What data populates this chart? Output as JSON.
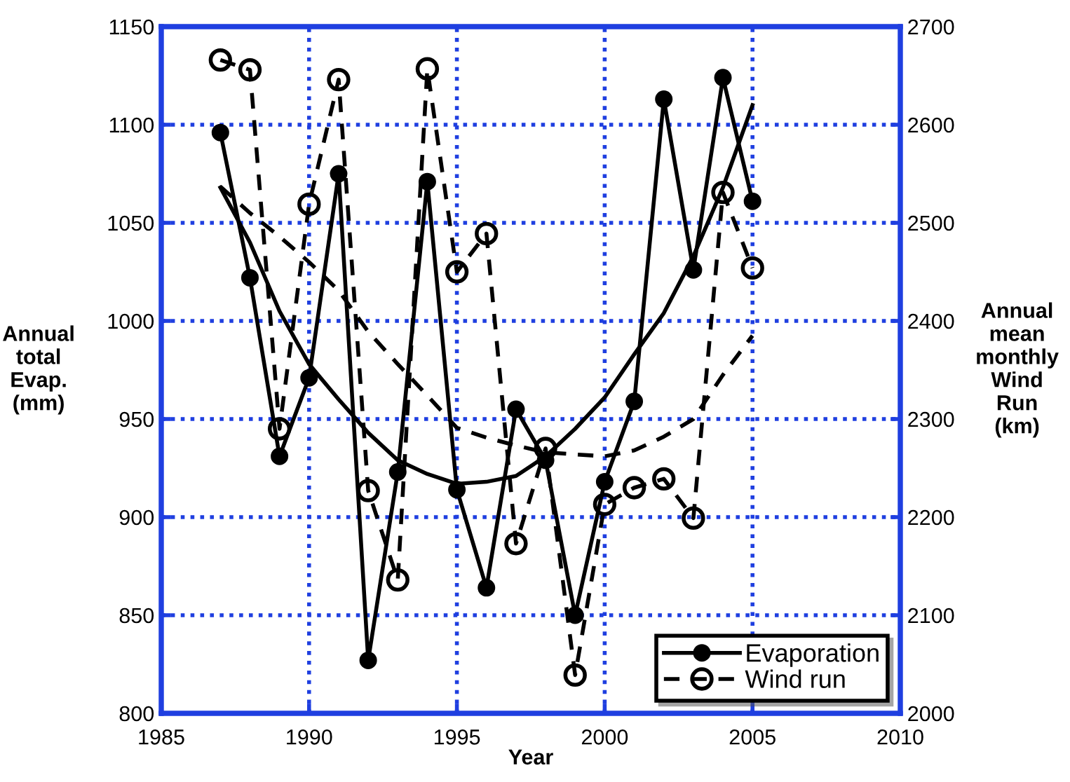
{
  "chart_data": {
    "type": "line",
    "xlabel": "Year",
    "ylabel": "Annual\ntotal\nEvap.\n(mm)",
    "y2label": "Annual\nmean\nmonthly\nWind\nRun\n(km)",
    "xlim": [
      1985,
      2010
    ],
    "xticks": [
      1985,
      1990,
      1995,
      2000,
      2005,
      2010
    ],
    "ylim": [
      800,
      1150
    ],
    "yticks": [
      800,
      850,
      900,
      950,
      1000,
      1050,
      1100,
      1150
    ],
    "y2lim": [
      2000,
      2700
    ],
    "y2ticks": [
      2000,
      2100,
      2200,
      2300,
      2400,
      2500,
      2600,
      2700
    ],
    "grid": true,
    "legend": "bottom right",
    "series": [
      {
        "name": "Evaporation",
        "color": "#000000",
        "marker": "circle",
        "line_style": "solid",
        "x": [
          1987,
          1988,
          1989,
          1990,
          1991,
          1992,
          1993,
          1994,
          1995,
          1996,
          1997,
          1998,
          1999,
          2000,
          2001,
          2002,
          2003,
          2004,
          2005
        ],
        "values": [
          1096,
          1022,
          931,
          971,
          1075,
          827,
          923,
          1071,
          914,
          864,
          955,
          929,
          850,
          918,
          959,
          1113,
          1026,
          1124,
          1061
        ]
      },
      {
        "name": "Wind run",
        "color": "#000000",
        "marker": "circle",
        "line_style": "dashed",
        "axis": "y2",
        "x": [
          1987,
          1988,
          1989,
          1990,
          1991,
          1992,
          1993,
          1994,
          1995,
          1996,
          1997,
          1998,
          1999,
          2000,
          2001,
          2002,
          2003,
          2004,
          2005
        ],
        "values": [
          2666,
          2656,
          2290,
          2519,
          2646,
          2227,
          2136,
          2657,
          2450,
          2489,
          2173,
          2270,
          2039,
          2213,
          2230,
          2239,
          2199,
          2531,
          2454
        ]
      },
      {
        "color": "#000000",
        "marker": "none",
        "line_style": "solid",
        "x": [
          1987,
          1988,
          1989,
          1990,
          1991,
          1992,
          1993,
          1994,
          1995,
          1996,
          1997,
          1998,
          1999,
          2000,
          2001,
          2002,
          2003,
          2004,
          2005
        ],
        "values": [
          1068,
          1040,
          1005,
          978,
          960,
          943,
          929,
          922,
          917,
          918,
          921,
          931,
          945,
          961,
          983,
          1004,
          1033,
          1068,
          1110
        ]
      },
      {
        "color": "#000000",
        "marker": "none",
        "line_style": "dashed",
        "axis": "y2",
        "x": [
          1987,
          1988,
          1989,
          1990,
          1991,
          1992,
          1993,
          1994,
          1995,
          1996,
          1997,
          1998,
          1999,
          2000,
          2001,
          2002,
          2003,
          2004,
          2005
        ],
        "values": [
          2537,
          2510,
          2486,
          2460,
          2431,
          2389,
          2356,
          2324,
          2291,
          2281,
          2273,
          2266,
          2264,
          2262,
          2268,
          2282,
          2300,
          2345,
          2385
        ]
      }
    ]
  }
}
